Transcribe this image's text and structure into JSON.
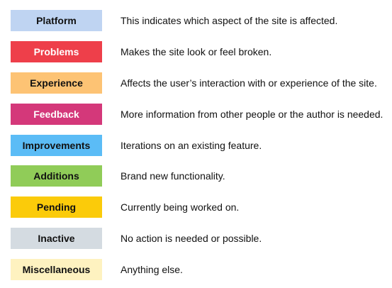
{
  "labels": [
    {
      "name": "Platform",
      "description": "This indicates which aspect of the site is affected.",
      "background": "#bfd4f2",
      "text_color": "#111111"
    },
    {
      "name": "Problems",
      "description": "Makes the site look or feel broken.",
      "background": "#ee3f4a",
      "text_color": "#ffffff"
    },
    {
      "name": "Experience",
      "description": "Affects the user’s interaction with or experience of the site.",
      "background": "#fdc374",
      "text_color": "#111111"
    },
    {
      "name": "Feedback",
      "description": "More information from other people or the author is needed.",
      "background": "#d4387a",
      "text_color": "#ffffff"
    },
    {
      "name": "Improvements",
      "description": "Iterations on an existing feature.",
      "background": "#5bbcf6",
      "text_color": "#111111"
    },
    {
      "name": "Additions",
      "description": "Brand new functionality.",
      "background": "#90cc58",
      "text_color": "#111111"
    },
    {
      "name": "Pending",
      "description": "Currently being worked on.",
      "background": "#fbcb0a",
      "text_color": "#111111"
    },
    {
      "name": "Inactive",
      "description": "No action is needed or possible.",
      "background": "#d4dbe1",
      "text_color": "#111111"
    },
    {
      "name": "Miscellaneous",
      "description": "Anything else.",
      "background": "#fef2c0",
      "text_color": "#111111"
    }
  ]
}
